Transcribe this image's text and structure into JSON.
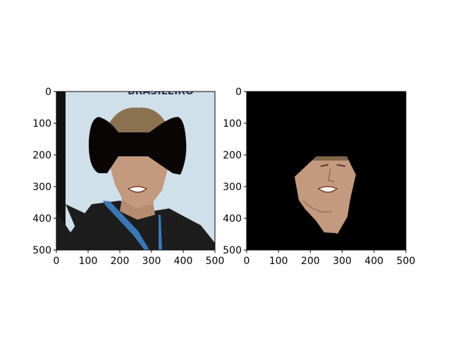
{
  "colors": {
    "sky": "#cfe0ea",
    "skin": "#c39a7d",
    "shirt": "#202020",
    "lanyard": "#3a78b8",
    "mask": "#0a0505",
    "background": "#000000"
  },
  "panels": [
    {
      "name": "left-panel",
      "image": "portrait-with-bowtie-mask",
      "background_text": "BRASILEIRO",
      "xticks": [
        "0",
        "100",
        "200",
        "300",
        "400",
        "500"
      ],
      "yticks": [
        "0",
        "100",
        "200",
        "300",
        "400",
        "500"
      ]
    },
    {
      "name": "right-panel",
      "image": "segmented-face-on-black",
      "xticks": [
        "0",
        "100",
        "200",
        "300",
        "400",
        "500"
      ],
      "yticks": [
        "0",
        "100",
        "200",
        "300",
        "400",
        "500"
      ]
    }
  ]
}
